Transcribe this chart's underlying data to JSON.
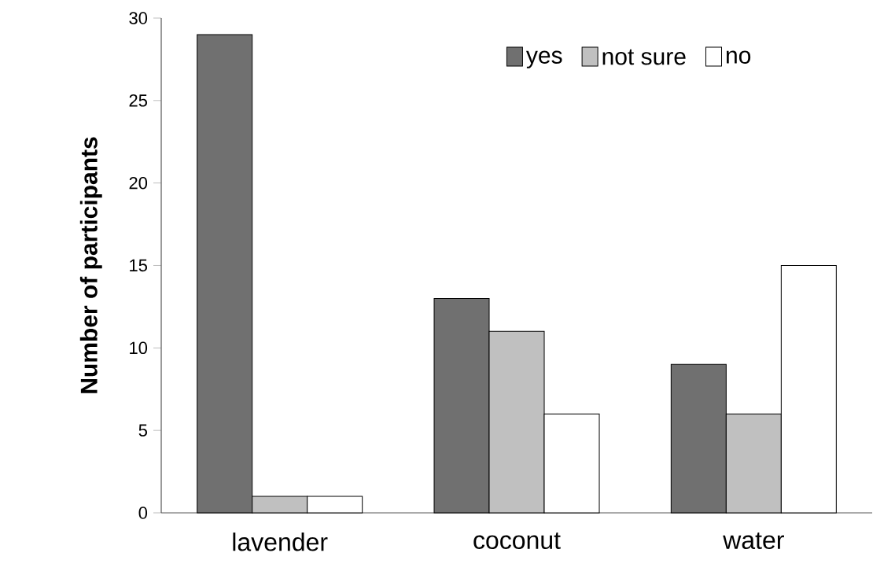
{
  "chart_data": {
    "type": "bar",
    "ylabel": "Number of participants",
    "categories": [
      "lavender",
      "coconut",
      "water"
    ],
    "series": [
      {
        "name": "yes",
        "color": "#707070",
        "values": [
          29,
          13,
          9
        ]
      },
      {
        "name": "not sure",
        "color": "#c0c0c0",
        "values": [
          1,
          11,
          6
        ]
      },
      {
        "name": "no",
        "color": "#ffffff",
        "values": [
          1,
          6,
          15
        ]
      }
    ],
    "ylim": [
      0,
      30
    ],
    "yticks": [
      0,
      5,
      10,
      15,
      20,
      25,
      30
    ],
    "grid": false,
    "legend": "top right"
  }
}
